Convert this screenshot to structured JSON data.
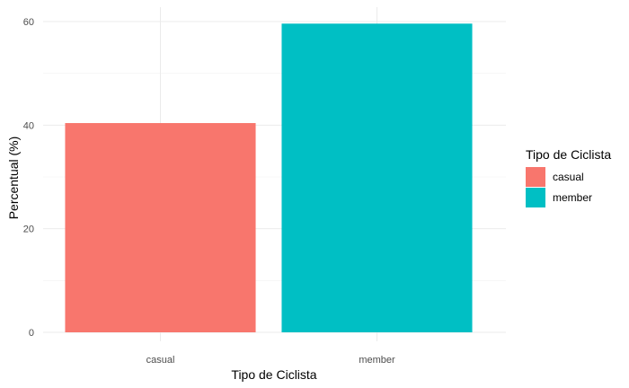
{
  "chart_data": {
    "type": "bar",
    "categories": [
      "casual",
      "member"
    ],
    "values": [
      40.4,
      59.6
    ],
    "colors": [
      "#F8766D",
      "#00BFC4"
    ],
    "xlabel": "Tipo de Ciclista",
    "ylabel": "Percentual (%)",
    "ylim": [
      0,
      60
    ],
    "yticks": [
      0,
      20,
      40,
      60
    ],
    "grid": true,
    "legend": {
      "title": "Tipo de Ciclista",
      "placement": "right",
      "entries": [
        "casual",
        "member"
      ]
    }
  }
}
